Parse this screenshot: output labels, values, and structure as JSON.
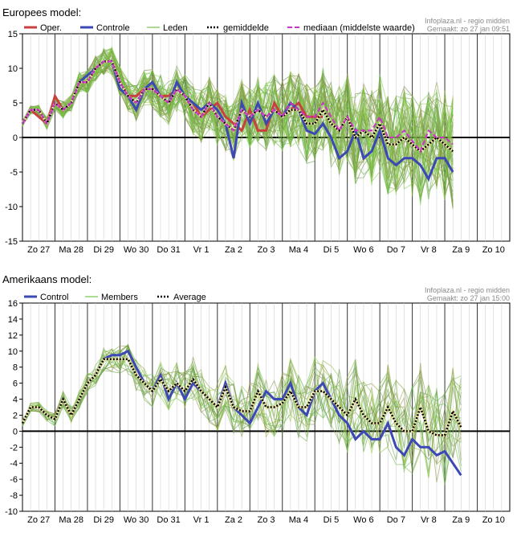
{
  "charts": [
    {
      "title": "Europees model:",
      "source": "Infoplaza.nl - regio midden",
      "made": "Gemaakt: zo 27 jan 09:51",
      "ylim": [
        -15,
        15
      ],
      "yticks": [
        15,
        10,
        5,
        0,
        -5,
        -10,
        -15
      ],
      "days": [
        "Zo 27",
        "Ma 28",
        "Di 29",
        "Wo 30",
        "Do 31",
        "Vr 1",
        "Za 2",
        "Zo 3",
        "Ma 4",
        "Di 5",
        "Wo 6",
        "Do 7",
        "Vr 8",
        "Za 9",
        "Zo 10"
      ],
      "legend": [
        "Oper.",
        "Controle",
        "Leden",
        "gemiddelde",
        "mediaan (middelste waarde)"
      ]
    },
    {
      "title": "Amerikaans model:",
      "source": "Infoplaza.nl - regio midden",
      "made": "Gemaakt: zo 27 jan 15:00",
      "ylim": [
        -10,
        16
      ],
      "yticks": [
        16,
        14,
        12,
        10,
        8,
        6,
        4,
        2,
        0,
        -2,
        -4,
        -6,
        -8,
        -10
      ],
      "days": [
        "Zo 27",
        "Ma 28",
        "Di 29",
        "Wo 30",
        "Do 31",
        "Vr 1",
        "Za 2",
        "Zo 3",
        "Ma 4",
        "Di 5",
        "Wo 6",
        "Do 7",
        "Vr 8",
        "Za 9",
        "Zo 10"
      ],
      "legend": [
        "Control",
        "Members",
        "Average"
      ]
    }
  ],
  "chart_data": [
    {
      "type": "line",
      "title": "Europees model:",
      "ylim": [
        -15,
        15
      ],
      "x_step_hours": 6,
      "series": [
        {
          "name": "Oper.",
          "color": "#c84040",
          "values": [
            2,
            4,
            3,
            2,
            6,
            4,
            5,
            8,
            8,
            10,
            11,
            11,
            8,
            6,
            6,
            7,
            7,
            6,
            6,
            7,
            6,
            5,
            3,
            4,
            5,
            3,
            2,
            1,
            4,
            1,
            1,
            5,
            3,
            4,
            5,
            3,
            3,
            3
          ]
        },
        {
          "name": "Controle",
          "color": "#3c48b4",
          "values": [
            2,
            4,
            4,
            2,
            5,
            4,
            5,
            8,
            9,
            10,
            11,
            11,
            7,
            6,
            4,
            7,
            8,
            6,
            5,
            8,
            6,
            5,
            4,
            5,
            4,
            2,
            -3,
            5,
            2,
            5,
            2,
            4,
            3,
            5,
            4,
            1,
            0.5,
            2,
            0,
            -3,
            -2,
            1,
            -3,
            -2,
            1,
            -3,
            -4,
            -3,
            -3,
            -4,
            -6,
            -3,
            -3,
            -5
          ]
        },
        {
          "name": "gemiddelde",
          "color": "#000000",
          "values": [
            2,
            4,
            4,
            2,
            5,
            4,
            5,
            8,
            8,
            10,
            11,
            11,
            8,
            6,
            5,
            7,
            7,
            6,
            5,
            7,
            6,
            4,
            3,
            5,
            3,
            2,
            1,
            4,
            3,
            4,
            3,
            4,
            3,
            4,
            4,
            2,
            2,
            4,
            2,
            1,
            3,
            0,
            1,
            0,
            2,
            -1,
            -1,
            0,
            -1,
            -2,
            -1,
            0,
            -1,
            -2
          ]
        },
        {
          "name": "mediaan (middelste waarde)",
          "color": "#cc33cc",
          "values": [
            2,
            4,
            4,
            2,
            5,
            4,
            5,
            8,
            8,
            10,
            11,
            11,
            8,
            6,
            5,
            7,
            7,
            6,
            5,
            7,
            6,
            4,
            3,
            5,
            3,
            2,
            1,
            4,
            3,
            4,
            3,
            4,
            3,
            5,
            4,
            3,
            3,
            5,
            3,
            1,
            3,
            1,
            1,
            1,
            3,
            0,
            0,
            1,
            -0.5,
            -2,
            1,
            0,
            0,
            -1
          ]
        }
      ]
    },
    {
      "type": "line",
      "title": "Amerikaans model:",
      "ylim": [
        -10,
        16
      ],
      "x_step_hours": 6,
      "series": [
        {
          "name": "Control",
          "color": "#3c48b4",
          "values": [
            1,
            3,
            3,
            2,
            1.5,
            4,
            2,
            4,
            6,
            7,
            9,
            9.5,
            9.5,
            10,
            8,
            6,
            5,
            7,
            4,
            6,
            4,
            6,
            5,
            4,
            3,
            6,
            3,
            2,
            1,
            3,
            5,
            4,
            4,
            6,
            3,
            2,
            5,
            6,
            4,
            2,
            1,
            -1,
            0,
            -1,
            -1,
            1,
            -2,
            -3,
            -1,
            -2,
            -2,
            -3,
            -2.5,
            -4,
            -5.5
          ]
        },
        {
          "name": "Average",
          "color": "#000000",
          "values": [
            1,
            3,
            3,
            2,
            1.5,
            4,
            2,
            4,
            6,
            7,
            9,
            9,
            9,
            9,
            7,
            6,
            5,
            6.5,
            5,
            6,
            5,
            6.5,
            5,
            4,
            3,
            5.5,
            3,
            2.5,
            2.5,
            5,
            3,
            3,
            3.5,
            5,
            3,
            3,
            5,
            5,
            4,
            3,
            2,
            4,
            2,
            1,
            1,
            3,
            1,
            0,
            0,
            3,
            0,
            -0.5,
            -0.5,
            2.5,
            0.5
          ]
        }
      ]
    }
  ]
}
